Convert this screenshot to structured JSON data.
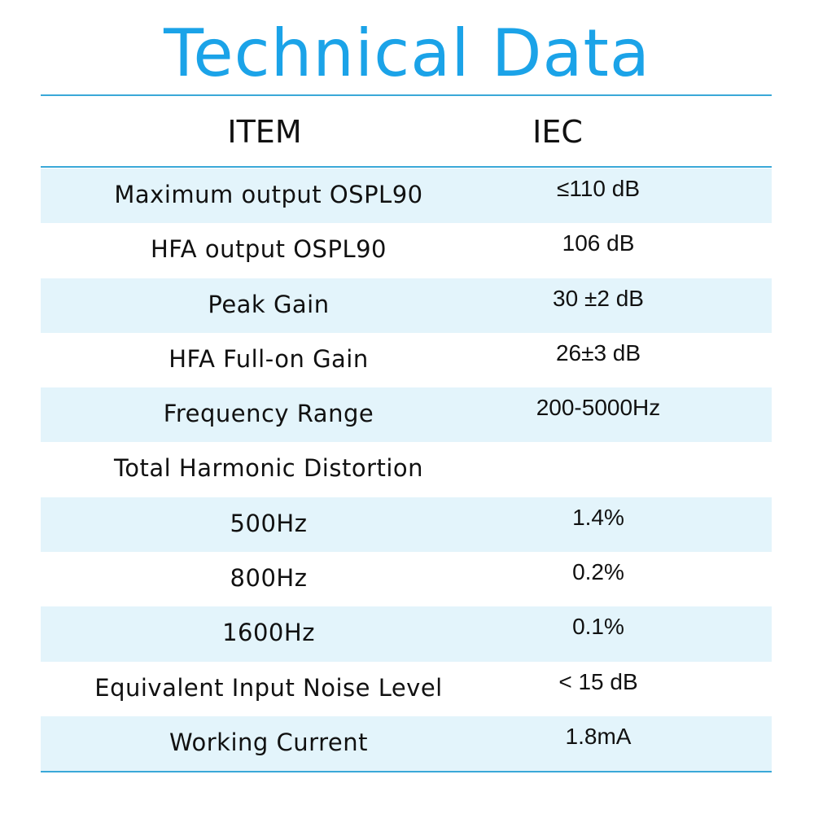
{
  "title": "Technical Data",
  "colors": {
    "accent": "#1ba3e8",
    "rule": "#3aa8d8",
    "row_shade": "#e3f4fb"
  },
  "table": {
    "headers": {
      "item": "ITEM",
      "value": "IEC"
    },
    "rows": [
      {
        "item": "Maximum output OSPL90",
        "value": "≤110 dB"
      },
      {
        "item": "HFA output OSPL90",
        "value": "106 dB"
      },
      {
        "item": "Peak Gain",
        "value": "30 ±2 dB"
      },
      {
        "item": "HFA Full-on Gain",
        "value": "26±3 dB"
      },
      {
        "item": "Frequency Range",
        "value": "200-5000Hz"
      },
      {
        "item": "Total Harmonic Distortion",
        "value": ""
      },
      {
        "item": "500Hz",
        "value": "1.4%"
      },
      {
        "item": "800Hz",
        "value": "0.2%"
      },
      {
        "item": "1600Hz",
        "value": "0.1%"
      },
      {
        "item": "Equivalent Input Noise Level",
        "value": "< 15 dB"
      },
      {
        "item": "Working Current",
        "value": "1.8mA"
      }
    ]
  }
}
